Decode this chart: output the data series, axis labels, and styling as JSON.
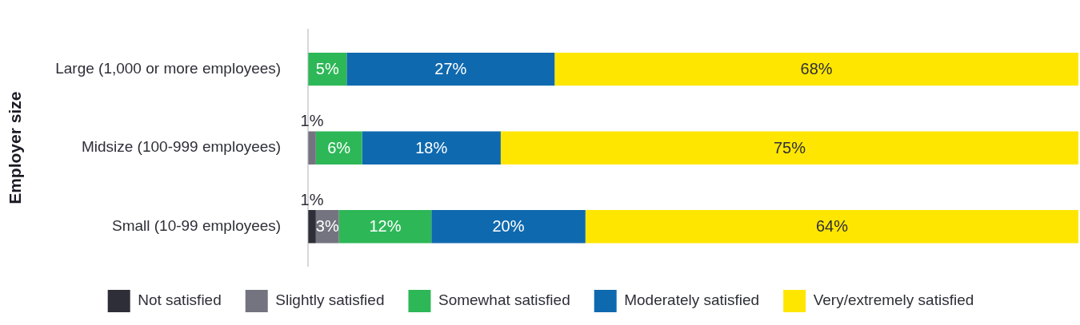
{
  "chart_data": {
    "type": "bar",
    "orientation": "horizontal",
    "stacked": true,
    "ylabel": "Employer size",
    "categories": [
      "Large (1,000 or more employees)",
      "Midsize (100-999 employees)",
      "Small (10-99 employees)"
    ],
    "xlim": [
      0,
      100
    ],
    "tick_labels": "y",
    "grid": false,
    "legend": "bottom",
    "series": [
      {
        "name": "Not satisfied",
        "color": "#2e2e38",
        "values": [
          0,
          0,
          1
        ],
        "value_labels": [
          null,
          null,
          "1%"
        ]
      },
      {
        "name": "Slightly satisfied",
        "color": "#747480",
        "values": [
          0,
          1,
          3
        ],
        "value_labels": [
          null,
          "1%",
          "3%"
        ]
      },
      {
        "name": "Somewhat satisfied",
        "color": "#2db757",
        "values": [
          5,
          6,
          12
        ],
        "value_labels": [
          "5%",
          "6%",
          "12%"
        ]
      },
      {
        "name": "Moderately satisfied",
        "color": "#0f69af",
        "values": [
          27,
          18,
          20
        ],
        "value_labels": [
          "27%",
          "18%",
          "20%"
        ]
      },
      {
        "name": "Very/extremely satisfied",
        "color": "#ffe600",
        "values": [
          68,
          75,
          64
        ],
        "value_labels": [
          "68%",
          "75%",
          "64%"
        ]
      }
    ]
  }
}
